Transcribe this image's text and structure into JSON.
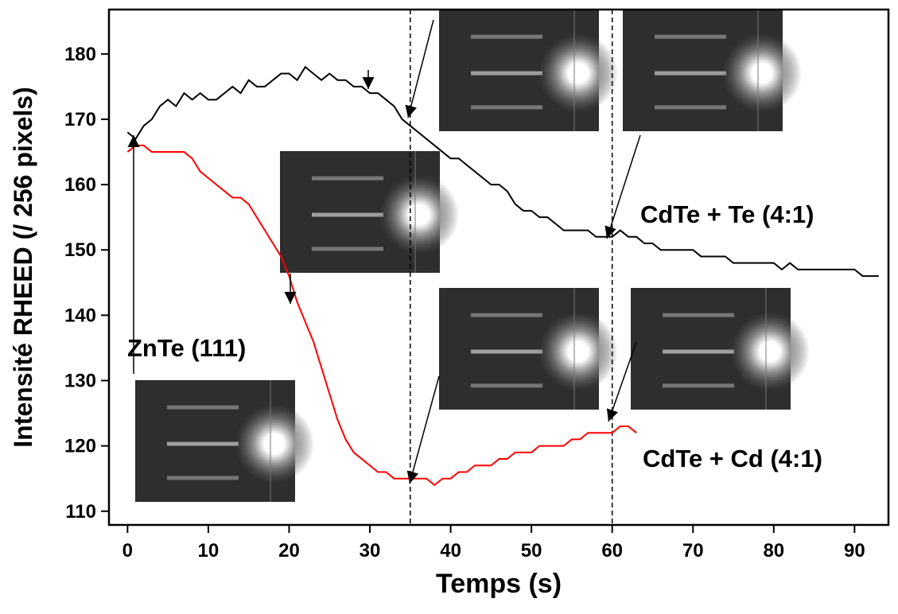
{
  "chart_data": {
    "type": "line",
    "x_label": "Temps (s)",
    "y_label": "Intensité RHEED (/ 256 pixels)",
    "xlim": [
      -2.3,
      94.2
    ],
    "ylim": [
      107.9,
      186.8
    ],
    "xticks": [
      0,
      10,
      20,
      30,
      40,
      50,
      60,
      70,
      80,
      90
    ],
    "yticks": [
      110,
      120,
      130,
      140,
      150,
      160,
      170,
      180
    ],
    "reference_lines": [
      35,
      60
    ],
    "annotations": [
      "ZnTe (111)",
      "CdTe + Te (4:1)",
      "CdTe + Cd (4:1)"
    ],
    "series": [
      {
        "name": "CdTe + Te (4:1)",
        "color": "#000000",
        "x": [
          0,
          1,
          2,
          3,
          4,
          5,
          6,
          7,
          8,
          9,
          10,
          11,
          12,
          13,
          14,
          15,
          16,
          17,
          18,
          19,
          20,
          21,
          22,
          23,
          24,
          25,
          26,
          27,
          28,
          29,
          30,
          31,
          32,
          33,
          34,
          35,
          36,
          37,
          38,
          39,
          40,
          41,
          42,
          43,
          44,
          45,
          46,
          47,
          48,
          49,
          50,
          51,
          52,
          53,
          54,
          55,
          56,
          57,
          58,
          59,
          60,
          61,
          62,
          63,
          64,
          65,
          66,
          67,
          68,
          69,
          70,
          71,
          72,
          73,
          74,
          75,
          76,
          77,
          78,
          79,
          80,
          81,
          82,
          83,
          84,
          85,
          86,
          87,
          88,
          89,
          90,
          91,
          92,
          93
        ],
        "values": [
          168,
          167,
          169,
          170,
          172,
          173,
          172,
          174,
          173,
          174,
          173,
          173,
          174,
          175,
          174,
          176,
          175,
          175,
          176,
          177,
          177,
          176,
          178,
          177,
          176,
          177,
          176,
          176,
          175,
          175,
          174,
          174,
          173,
          172,
          170,
          169,
          168,
          167,
          166,
          165,
          164,
          164,
          163,
          162,
          161,
          160,
          160,
          159,
          157,
          156,
          156,
          155,
          155,
          154,
          153,
          153,
          153,
          153,
          152,
          152,
          152,
          153,
          152,
          152,
          151,
          151,
          150,
          150,
          150,
          150,
          150,
          149,
          149,
          149,
          149,
          148,
          148,
          148,
          148,
          148,
          148,
          147,
          148,
          147,
          147,
          147,
          147,
          147,
          147,
          147,
          147,
          146,
          146,
          146
        ]
      },
      {
        "name": "CdTe + Cd (4:1)",
        "color": "#ff0000",
        "x": [
          0,
          1,
          2,
          3,
          4,
          5,
          6,
          7,
          8,
          9,
          10,
          11,
          12,
          13,
          14,
          15,
          16,
          17,
          18,
          19,
          20,
          21,
          22,
          23,
          24,
          25,
          26,
          27,
          28,
          29,
          30,
          31,
          32,
          33,
          34,
          35,
          36,
          37,
          38,
          39,
          40,
          41,
          42,
          43,
          44,
          45,
          46,
          47,
          48,
          49,
          50,
          51,
          52,
          53,
          54,
          55,
          56,
          57,
          58,
          59,
          60,
          61,
          62,
          63
        ],
        "values": [
          165,
          166,
          166,
          165,
          165,
          165,
          165,
          165,
          164,
          162,
          161,
          160,
          159,
          158,
          158,
          157,
          155,
          153,
          151,
          149,
          146,
          142,
          139,
          136,
          132,
          128,
          124,
          121,
          119,
          118,
          117,
          116,
          116,
          115,
          115,
          115,
          115,
          115,
          114,
          115,
          115,
          116,
          116,
          117,
          117,
          117,
          118,
          118,
          119,
          119,
          119,
          120,
          120,
          120,
          120,
          121,
          121,
          122,
          122,
          122,
          122,
          123,
          123,
          122
        ]
      }
    ]
  }
}
